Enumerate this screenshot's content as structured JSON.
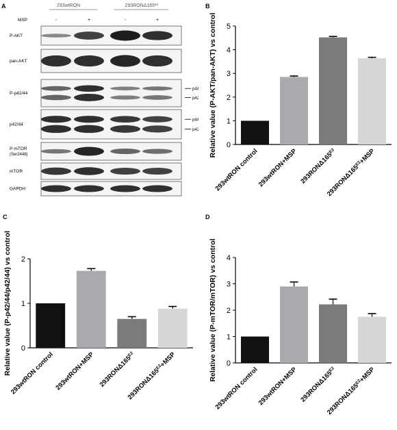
{
  "panels": {
    "a": "A",
    "b": "B",
    "c": "C",
    "d": "D"
  },
  "blot": {
    "group_labels": [
      "293wtRON",
      "293RONΔ165E2"
    ],
    "treatment_label": "MSP",
    "treatment_marks": [
      "-",
      "+",
      "-",
      "+"
    ],
    "rows": [
      {
        "label": "P-AKT",
        "bands": [
          0.35,
          0.75,
          0.95,
          0.85
        ]
      },
      {
        "label": "pan-AKT",
        "bands": [
          0.85,
          0.85,
          0.9,
          0.85
        ]
      },
      {
        "label": "P-p42/44",
        "bands": [
          0.55,
          0.85,
          0.4,
          0.45
        ],
        "double": true,
        "side": [
          "p44",
          "p42"
        ]
      },
      {
        "label": "p42/44",
        "bands": [
          0.85,
          0.85,
          0.8,
          0.75
        ],
        "double": true,
        "side": [
          "p44",
          "p42"
        ]
      },
      {
        "label": "P-mTOR",
        "label2": "(Ser2448)",
        "bands": [
          0.45,
          0.9,
          0.55,
          0.5
        ]
      },
      {
        "label": "mTOR",
        "bands": [
          0.8,
          0.85,
          0.75,
          0.75
        ]
      },
      {
        "label": "GAPDH",
        "bands": [
          0.85,
          0.85,
          0.85,
          0.85
        ]
      }
    ]
  },
  "chart_data": [
    {
      "type": "bar",
      "ylabel": "Relative value (P-AKT/pan-AKT) vs control",
      "ylim": [
        0,
        5
      ],
      "yticks": [
        "0",
        "1",
        "2",
        "3",
        "4",
        "5"
      ],
      "categories": [
        "293wtRON control",
        "293wtRON+MSP",
        "293RONΔ165E2",
        "293RONΔ165E2+MSP"
      ],
      "values": [
        1.0,
        2.85,
        4.52,
        3.64
      ],
      "errors": [
        0,
        0.04,
        0.04,
        0.04
      ],
      "colors": [
        "#111111",
        "#a9a9b0",
        "#7b7b7b",
        "#d6d6d6"
      ]
    },
    {
      "type": "bar",
      "ylabel": "Relative value (P-p42/44/p42/44) vs control",
      "ylim": [
        0,
        2
      ],
      "yticks": [
        "0",
        "1",
        "2"
      ],
      "categories": [
        "293wtRON control",
        "293wtRON+MSP",
        "293RONΔ165E2",
        "293RONΔ165E2+MSP"
      ],
      "values": [
        1.0,
        1.73,
        0.65,
        0.88
      ],
      "errors": [
        0,
        0.05,
        0.05,
        0.05
      ],
      "colors": [
        "#111111",
        "#a9a9b0",
        "#7b7b7b",
        "#d6d6d6"
      ]
    },
    {
      "type": "bar",
      "ylabel": "Relative value (P-mTOR/mTOR) vs control",
      "ylim": [
        0,
        4
      ],
      "yticks": [
        "0",
        "1",
        "2",
        "3",
        "4"
      ],
      "categories": [
        "293wtRON control",
        "293wtRON+MSP",
        "293RONΔ165E2",
        "293RONΔ165E2+MSP"
      ],
      "values": [
        1.0,
        2.9,
        2.22,
        1.75
      ],
      "errors": [
        0,
        0.17,
        0.2,
        0.12
      ],
      "colors": [
        "#111111",
        "#a9a9b0",
        "#7b7b7b",
        "#d6d6d6"
      ]
    }
  ]
}
